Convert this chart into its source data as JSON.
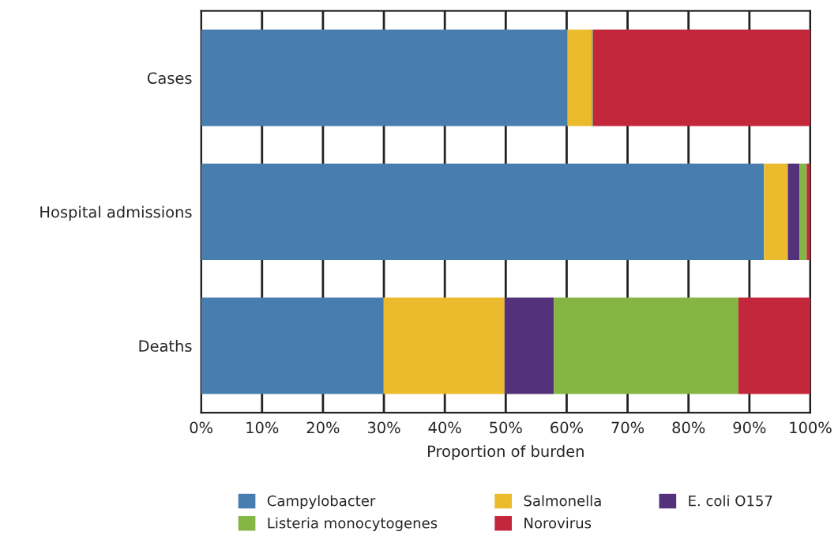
{
  "chart_data": {
    "type": "bar",
    "orientation": "horizontal",
    "stacked": true,
    "categories": [
      "Cases",
      "Hospital admissions",
      "Deaths"
    ],
    "series": [
      {
        "name": "Campylobacter",
        "color": "#487db0",
        "values": [
          60.1,
          92.4,
          29.9
        ]
      },
      {
        "name": "Salmonella",
        "color": "#ebbb2d",
        "values": [
          4.0,
          3.9,
          19.9
        ]
      },
      {
        "name": "E. coli O157",
        "color": "#53327b",
        "values": [
          0,
          1.9,
          8.1
        ]
      },
      {
        "name": "Listeria monocytogenes",
        "color": "#85b544",
        "values": [
          0.2,
          1.2,
          30.3
        ]
      },
      {
        "name": "Norovirus",
        "color": "#c3273b",
        "values": [
          35.7,
          0.6,
          11.8
        ]
      }
    ],
    "xlabel": "Proportion of burden",
    "xlim": [
      0,
      100
    ],
    "xticks": [
      {
        "value": 0,
        "label": "0%"
      },
      {
        "value": 10,
        "label": "10%"
      },
      {
        "value": 20,
        "label": "20%"
      },
      {
        "value": 30,
        "label": "30%"
      },
      {
        "value": 40,
        "label": "40%"
      },
      {
        "value": 50,
        "label": "50%"
      },
      {
        "value": 60,
        "label": "60%"
      },
      {
        "value": 70,
        "label": "70%"
      },
      {
        "value": 80,
        "label": "80%"
      },
      {
        "value": 90,
        "label": "90%"
      },
      {
        "value": 100,
        "label": "100%"
      }
    ],
    "grid": "x",
    "legend": "bottom"
  }
}
